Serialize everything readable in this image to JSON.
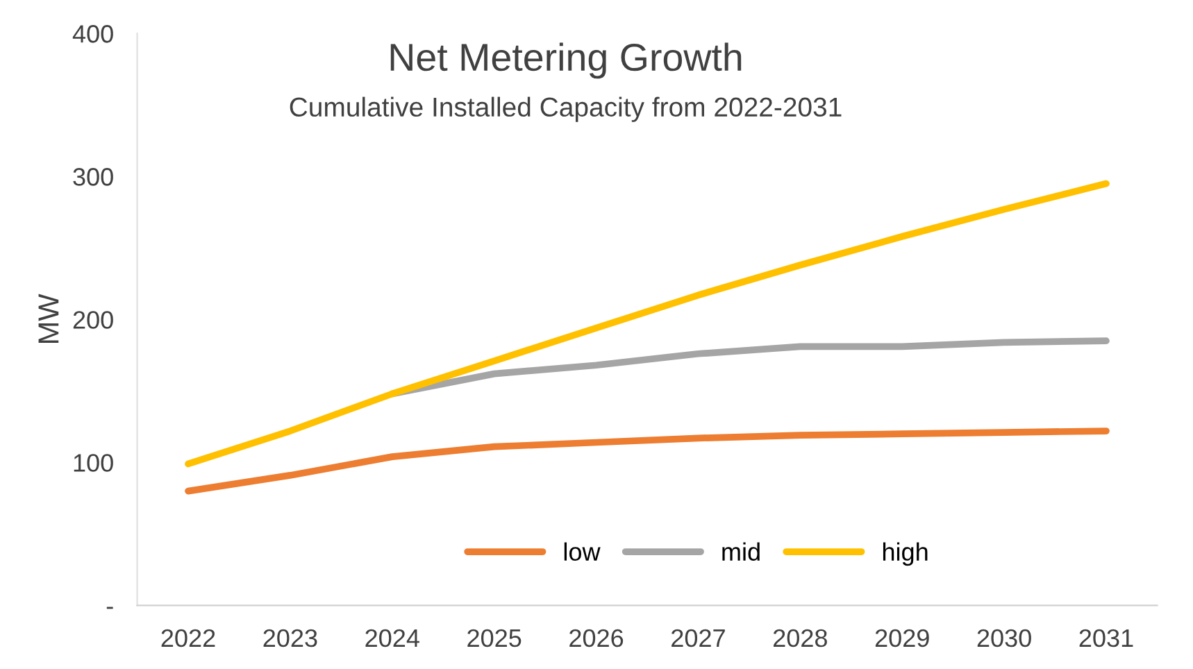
{
  "chart_data": {
    "type": "line",
    "title": "Net Metering Growth",
    "subtitle": "Cumulative Installed Capacity from 2022-2031",
    "ylabel": "MW",
    "categories": [
      "2022",
      "2023",
      "2024",
      "2025",
      "2026",
      "2027",
      "2028",
      "2029",
      "2030",
      "2031"
    ],
    "series": [
      {
        "name": "low",
        "color": "#ed7d31",
        "values": [
          80,
          91,
          104,
          111,
          114,
          117,
          119,
          120,
          121,
          122
        ]
      },
      {
        "name": "mid",
        "color": "#a5a5a5",
        "values": [
          null,
          null,
          148,
          162,
          168,
          176,
          181,
          181,
          184,
          185
        ]
      },
      {
        "name": "high",
        "color": "#ffc000",
        "values": [
          99,
          122,
          148,
          171,
          194,
          217,
          238,
          258,
          277,
          295
        ]
      }
    ],
    "ylim": [
      0,
      400
    ],
    "yticks": [
      {
        "value": 0,
        "label": "-"
      },
      100,
      200,
      300,
      400
    ],
    "grid": false,
    "legend": "bottom",
    "marker": "none",
    "line_style": "solid"
  }
}
